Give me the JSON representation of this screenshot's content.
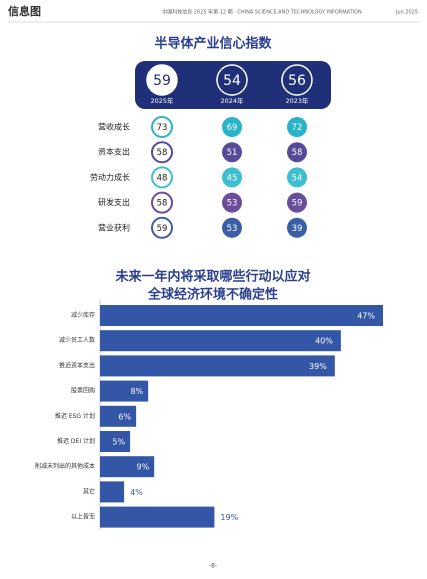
{
  "header": {
    "section": "信息图",
    "journal": "中国科技信息 2025 年第 12 期 · CHINA SCIENCE AND TECHNOLOGY INFORMATION",
    "date": "Jun.2025"
  },
  "confidence_index": {
    "title": "半导体产业信心指数",
    "overall": [
      {
        "value": "59",
        "year": "2025年"
      },
      {
        "value": "54",
        "year": "2024年"
      },
      {
        "value": "56",
        "year": "2023年"
      }
    ],
    "rows": [
      {
        "label": "营收成长",
        "values": [
          "73",
          "69",
          "72"
        ],
        "color": "#29b3c8"
      },
      {
        "label": "资本支出",
        "values": [
          "58",
          "51",
          "58"
        ],
        "color": "#574a98"
      },
      {
        "label": "劳动力成长",
        "values": [
          "48",
          "45",
          "54"
        ],
        "color": "#3dbfd0"
      },
      {
        "label": "研发支出",
        "values": [
          "58",
          "53",
          "59"
        ],
        "color": "#6a4c9c"
      },
      {
        "label": "营业获利",
        "values": [
          "59",
          "53",
          "39"
        ],
        "color": "#3a5fa6"
      }
    ]
  },
  "chart_data": {
    "type": "bar",
    "orientation": "horizontal",
    "title": [
      "未来一年内将采取哪些行动以应对",
      "全球经济环境不确定性"
    ],
    "categories": [
      "减少库存",
      "减少员工人数",
      "推迟资本支出",
      "股票回购",
      "推迟 ESG 计划",
      "推迟 DEI 计划",
      "削减未列出的其他成本",
      "其它",
      "以上皆无"
    ],
    "values": [
      47,
      40,
      39,
      8,
      6,
      5,
      9,
      4,
      19
    ],
    "value_labels": [
      "47%",
      "40%",
      "39%",
      "8%",
      "6%",
      "5%",
      "9%",
      "4%",
      "19%"
    ],
    "color": "#3456a6"
  },
  "footer": {
    "page": "-8-"
  }
}
